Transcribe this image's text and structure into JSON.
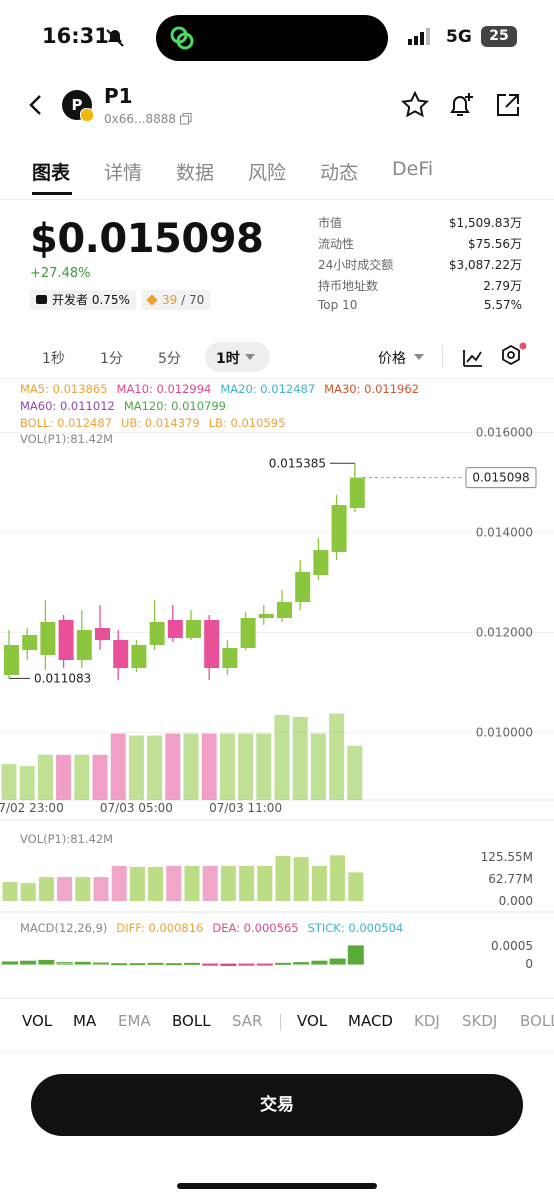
{
  "status_bar": {
    "time": "16:31",
    "network": "5G",
    "battery": "25"
  },
  "header": {
    "logo_letter": "P",
    "title": "P1",
    "address": "0x66...8888"
  },
  "tabs": [
    "图表",
    "详情",
    "数据",
    "风险",
    "动态",
    "DeFi"
  ],
  "price": {
    "value": "$0.015098",
    "change": "+27.48%",
    "dev": "开发者 0.75%",
    "score": "39",
    "score_total": "/ 70"
  },
  "stats": [
    [
      "市值",
      "$1,509.83万"
    ],
    [
      "流动性",
      "$75.56万"
    ],
    [
      "24小时成交额",
      "$3,087.22万"
    ],
    [
      "持币地址数",
      "2.79万"
    ],
    [
      "Top 10",
      "5.57%"
    ]
  ],
  "intervals": [
    "1秒",
    "1分",
    "5分",
    "1时"
  ],
  "price_toggle": "价格",
  "chart_data": {
    "type": "candlestick",
    "legend": [
      [
        "MA5: 0.013865",
        "MA10: 0.012994",
        "MA20: 0.012487",
        "MA30: 0.011962"
      ],
      [
        "MA60: 0.011012",
        "MA120: 0.010799"
      ],
      [
        "BOLL: 0.012487",
        "UB: 0.014379",
        "LB: 0.010595"
      ],
      [
        "VOL(P1):81.42M"
      ]
    ],
    "legend_colors": [
      [
        "#eea23a",
        "#e0488e",
        "#3cb4cc",
        "#d2552c"
      ],
      [
        "#9446b4",
        "#4aa84a"
      ],
      [
        "#eea23a",
        "#eea23a",
        "#eea23a"
      ],
      [
        "#888888"
      ]
    ],
    "up_color": "#8cc63e",
    "down_color": "#e8509a",
    "categories": [
      null,
      "07/02 23:00",
      null,
      null,
      null,
      null,
      null,
      "07/03 05:00",
      null,
      null,
      null,
      null,
      null,
      "07/03 11:00",
      null,
      null,
      null,
      null,
      null,
      null
    ],
    "candles": [
      {
        "open": 0.01115,
        "high": 0.01205,
        "low": 0.011083,
        "close": 0.01175
      },
      {
        "open": 0.01165,
        "high": 0.01209,
        "low": 0.01145,
        "close": 0.01195
      },
      {
        "open": 0.01155,
        "high": 0.01265,
        "low": 0.01125,
        "close": 0.01221
      },
      {
        "open": 0.01225,
        "high": 0.01235,
        "low": 0.01129,
        "close": 0.01145
      },
      {
        "open": 0.01145,
        "high": 0.01245,
        "low": 0.01129,
        "close": 0.01205
      },
      {
        "open": 0.01209,
        "high": 0.01255,
        "low": 0.01165,
        "close": 0.01185
      },
      {
        "open": 0.01185,
        "high": 0.01205,
        "low": 0.01105,
        "close": 0.01129
      },
      {
        "open": 0.01129,
        "high": 0.01185,
        "low": 0.01121,
        "close": 0.01175
      },
      {
        "open": 0.01175,
        "high": 0.01265,
        "low": 0.01165,
        "close": 0.01221
      },
      {
        "open": 0.01225,
        "high": 0.01255,
        "low": 0.01181,
        "close": 0.01189
      },
      {
        "open": 0.01189,
        "high": 0.01245,
        "low": 0.01185,
        "close": 0.01225
      },
      {
        "open": 0.01225,
        "high": 0.01235,
        "low": 0.01105,
        "close": 0.01129
      },
      {
        "open": 0.01129,
        "high": 0.01185,
        "low": 0.01115,
        "close": 0.01169
      },
      {
        "open": 0.01169,
        "high": 0.01241,
        "low": 0.01165,
        "close": 0.01229
      },
      {
        "open": 0.01229,
        "high": 0.01255,
        "low": 0.01215,
        "close": 0.01237
      },
      {
        "open": 0.01229,
        "high": 0.01285,
        "low": 0.01221,
        "close": 0.01261
      },
      {
        "open": 0.01261,
        "high": 0.01345,
        "low": 0.01245,
        "close": 0.01321
      },
      {
        "open": 0.01315,
        "high": 0.01389,
        "low": 0.01305,
        "close": 0.01365
      },
      {
        "open": 0.01361,
        "high": 0.01475,
        "low": 0.01345,
        "close": 0.01455
      },
      {
        "open": 0.01449,
        "high": 0.015385,
        "low": 0.01441,
        "close": 0.015098
      }
    ],
    "ylim": [
      0.00865,
      0.01705
    ],
    "yticks": [
      {
        "value": 0.01,
        "label": "0.010000"
      },
      {
        "value": 0.012,
        "label": "0.012000"
      },
      {
        "value": 0.014,
        "label": "0.014000"
      },
      {
        "value": 0.016,
        "label": "0.016000"
      }
    ],
    "high_mark": 0.015385,
    "low_mark": 0.011083,
    "last_price": 0.015098,
    "volume": {
      "label": "VOL(P1):81.42M",
      "values": [
        54,
        51,
        68,
        68,
        68,
        68,
        100,
        97,
        97,
        100,
        100,
        100,
        100,
        100,
        100,
        128,
        125,
        100,
        130,
        81.42
      ],
      "ylim": [
        0,
        188
      ],
      "yticks": [
        {
          "value": 0,
          "label": "0.000"
        },
        {
          "value": 62.77,
          "label": "62.77M"
        },
        {
          "value": 125.55,
          "label": "125.55M"
        }
      ]
    },
    "macd": {
      "labels": [
        "MACD(12,26,9)",
        "DIFF: 0.000816",
        "DEA: 0.000565",
        "STICK: 0.000504"
      ],
      "label_colors": [
        "#888888",
        "#eea23a",
        "#e0488e",
        "#3cb4cc"
      ],
      "values": [
        6e-05,
        8e-05,
        0.0001,
        4e-05,
        5e-05,
        3e-05,
        1e-05,
        1e-05,
        2e-05,
        1e-05,
        2e-05,
        -3e-05,
        -4e-05,
        -3e-05,
        -2e-05,
        2e-05,
        4e-05,
        8e-05,
        0.00014,
        0.000504
      ],
      "ylim": [
        -0.00094,
        0.00136
      ],
      "yticks": [
        0,
        {
          "value": 0.0005,
          "label": "0.0005"
        }
      ]
    }
  },
  "indicator_tabs": [
    "VOL",
    "MA",
    "EMA",
    "BOLL",
    "SAR",
    "VOL",
    "MACD",
    "KDJ",
    "SKDJ",
    "BOLL"
  ],
  "trade_button": "交易"
}
